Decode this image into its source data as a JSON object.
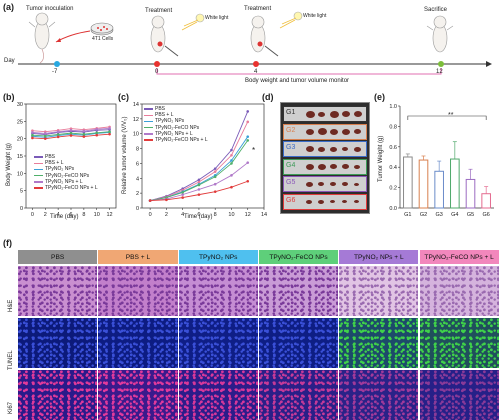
{
  "panels": {
    "a": "(a)",
    "b": "(b)",
    "c": "(c)",
    "d": "(d)",
    "e": "(e)",
    "f": "(f)"
  },
  "timeline": {
    "steps": [
      {
        "label": "Tumor inoculation",
        "day": "-7",
        "color": "#29a8e0"
      },
      {
        "label": "Treatment",
        "day": "0",
        "color": "#e8322f"
      },
      {
        "label": "Treatment",
        "day": "4",
        "color": "#e8322f"
      },
      {
        "label": "Sacrifice",
        "day": "12",
        "color": "#7cbd3a"
      }
    ],
    "cells_label": "4T1 Cells",
    "white_light_1": "White light",
    "white_light_2": "White light",
    "axis_label": "Day",
    "monitor_label": "Body weight and tumor volume monitor"
  },
  "legend_entries": [
    "PBS",
    "PBS + L",
    "TPyNO₂ NPs",
    "TPyNO₂-FeCO NPs",
    "TPyNO₂ NPs + L",
    "TPyNO₂-FeCO NPs + L"
  ],
  "legend_colors": [
    "#7a5bb8",
    "#e87c9a",
    "#3aa0d8",
    "#4fb06a",
    "#b079c9",
    "#e13b3b"
  ],
  "chart_data": [
    {
      "type": "line",
      "panel": "b",
      "xlabel": "Time (day)",
      "ylabel": "Body Weight (g)",
      "x": [
        0,
        2,
        4,
        6,
        8,
        10,
        12
      ],
      "xticks": [
        "0",
        "2",
        "4",
        "6",
        "8",
        "10",
        "12"
      ],
      "yticks": [
        "0",
        "5",
        "10",
        "15",
        "20",
        "25",
        "30"
      ],
      "xlim": [
        -1,
        13
      ],
      "ylim": [
        0,
        30
      ],
      "series": [
        {
          "name": "PBS",
          "values": [
            21.5,
            21.2,
            21.8,
            22.1,
            21.9,
            22.4,
            22.6
          ]
        },
        {
          "name": "PBS + L",
          "values": [
            22.3,
            22.0,
            22.4,
            22.9,
            22.6,
            23.0,
            23.4
          ]
        },
        {
          "name": "TPyNO₂ NPs",
          "values": [
            20.7,
            20.4,
            20.9,
            21.3,
            21.0,
            21.5,
            21.8
          ]
        },
        {
          "name": "TPyNO₂-FeCO NPs",
          "values": [
            21.0,
            20.8,
            21.2,
            21.6,
            21.3,
            21.7,
            22.0
          ]
        },
        {
          "name": "TPyNO₂ NPs + L",
          "values": [
            21.8,
            21.5,
            22.0,
            22.4,
            22.2,
            22.7,
            23.0
          ]
        },
        {
          "name": "TPyNO₂-FeCO NPs + L",
          "values": [
            20.2,
            20.0,
            20.5,
            20.9,
            20.6,
            21.0,
            21.3
          ]
        }
      ]
    },
    {
      "type": "line",
      "panel": "c",
      "xlabel": "Time (day)",
      "ylabel": "Relative tumor volume (V/V₀)",
      "x": [
        0,
        2,
        4,
        6,
        8,
        10,
        12
      ],
      "xticks": [
        "0",
        "2",
        "4",
        "6",
        "8",
        "10",
        "12",
        "14"
      ],
      "yticks": [
        "0",
        "2",
        "4",
        "6",
        "8",
        "10",
        "12",
        "14"
      ],
      "xlim": [
        -1,
        14
      ],
      "ylim": [
        0,
        14
      ],
      "significance": "*",
      "series": [
        {
          "name": "PBS",
          "values": [
            1.0,
            1.6,
            2.6,
            3.8,
            5.3,
            7.8,
            13.0
          ]
        },
        {
          "name": "PBS + L",
          "values": [
            1.0,
            1.5,
            2.4,
            3.5,
            4.9,
            7.1,
            11.6
          ]
        },
        {
          "name": "TPyNO₂ NPs",
          "values": [
            1.0,
            1.4,
            2.2,
            3.2,
            4.4,
            6.4,
            9.6
          ]
        },
        {
          "name": "TPyNO₂-FeCO NPs",
          "values": [
            1.0,
            1.4,
            2.1,
            3.1,
            4.2,
            6.0,
            9.1
          ]
        },
        {
          "name": "TPyNO₂ NPs + L",
          "values": [
            1.0,
            1.2,
            1.8,
            2.5,
            3.2,
            4.4,
            6.1
          ]
        },
        {
          "name": "TPyNO₂-FeCO NPs + L",
          "values": [
            1.0,
            1.1,
            1.4,
            1.8,
            2.2,
            2.8,
            3.6
          ]
        }
      ]
    },
    {
      "type": "bar",
      "panel": "e",
      "ylabel": "Tumor Weight (g)",
      "categories": [
        "G1",
        "G2",
        "G3",
        "G4",
        "G5",
        "G6"
      ],
      "values": [
        0.5,
        0.47,
        0.36,
        0.48,
        0.28,
        0.14
      ],
      "errors": [
        0.03,
        0.04,
        0.1,
        0.17,
        0.1,
        0.07
      ],
      "colors": [
        "#8a8a8a",
        "#d9804f",
        "#6a8cc9",
        "#4fa86a",
        "#9b6bc1",
        "#e46b8f"
      ],
      "yticks": [
        "0.0",
        "0.2",
        "0.4",
        "0.6",
        "0.8",
        "1.0"
      ],
      "ylim": [
        0,
        1.0
      ],
      "significance": "**"
    }
  ],
  "photo_groups": [
    {
      "label": "G1",
      "color": "#333333"
    },
    {
      "label": "G2",
      "color": "#d9804f"
    },
    {
      "label": "G3",
      "color": "#3a6cc9"
    },
    {
      "label": "G4",
      "color": "#3c9a58"
    },
    {
      "label": "G5",
      "color": "#8a55b8"
    },
    {
      "label": "G6",
      "color": "#e03b3b"
    }
  ],
  "histology": {
    "columns": [
      {
        "label": "PBS",
        "color": "#8f8f8f"
      },
      {
        "label": "PBS + L",
        "color": "#f0a774"
      },
      {
        "label": "TPyNO₂ NPs",
        "color": "#4fc0ef"
      },
      {
        "label": "TPyNO₂-FeCO  NPs",
        "color": "#5ecf7a"
      },
      {
        "label": "TPyNO₂ NPs + L",
        "color": "#a57ad6"
      },
      {
        "label": "TPyNO₂-FeCO NPs + L",
        "color": "#f287bc"
      }
    ],
    "rows": [
      "H&E",
      "TUNEL",
      "Ki67"
    ]
  }
}
